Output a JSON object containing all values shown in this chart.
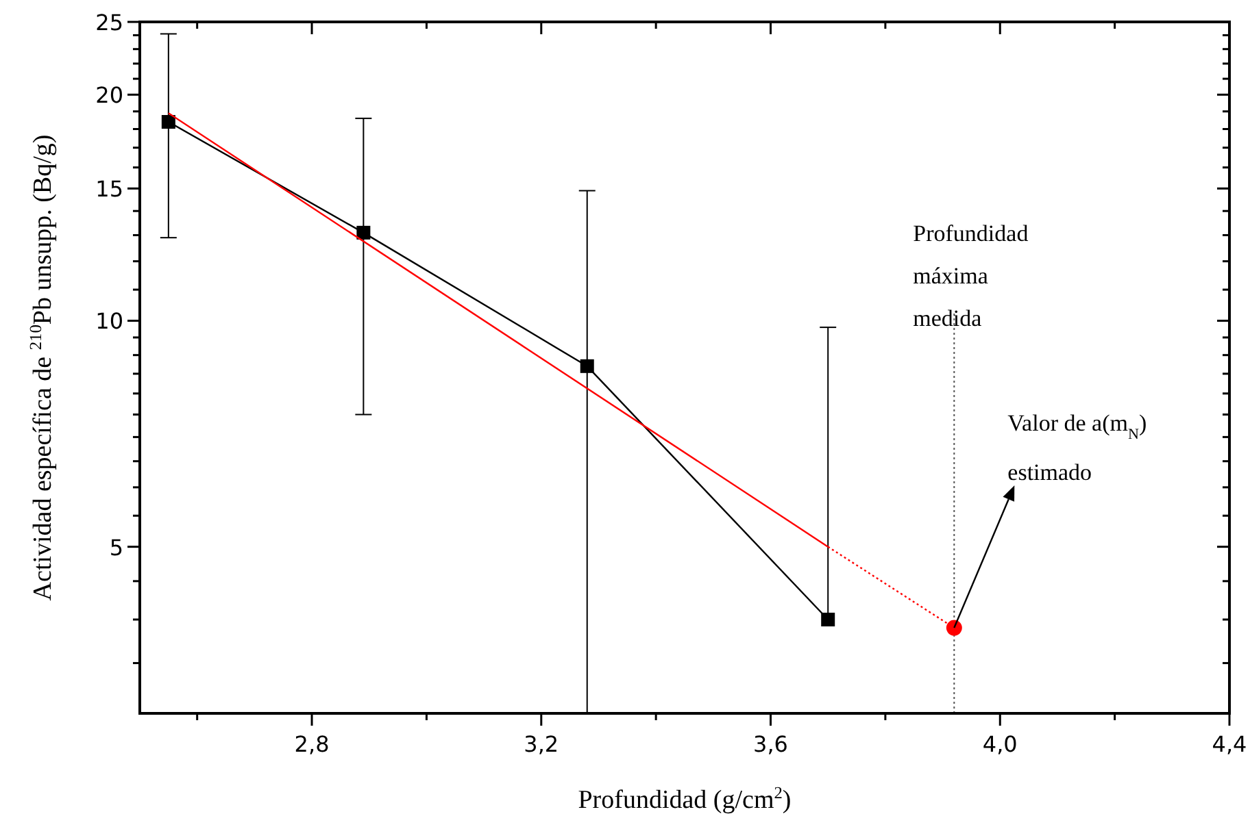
{
  "chart_data": {
    "type": "line",
    "xlabel": "Profundidad (g/cm$^{2}$)",
    "ylabel": "Actividad específica de $^{210}$Pb unsupp. (Bq/g)",
    "xlim": [
      2.5,
      4.4
    ],
    "xticks": [
      {
        "value": 2.6,
        "label": null
      },
      {
        "value": 2.8,
        "label": "2,8"
      },
      {
        "value": 3.0,
        "label": null
      },
      {
        "value": 3.2,
        "label": "3,2"
      },
      {
        "value": 3.4,
        "label": null
      },
      {
        "value": 3.6,
        "label": "3,6"
      },
      {
        "value": 3.8,
        "label": null
      },
      {
        "value": 4.0,
        "label": "4,0"
      },
      {
        "value": 4.2,
        "label": null
      },
      {
        "value": 4.4,
        "label": "4,4"
      }
    ],
    "ylim": [
      3,
      25
    ],
    "log": "y",
    "yticks": [
      {
        "value": 3.5,
        "label": null
      },
      {
        "value": 4,
        "label": null
      },
      {
        "value": 4.5,
        "label": null
      },
      5,
      {
        "value": 5.5,
        "label": null
      },
      {
        "value": 6,
        "label": null
      },
      {
        "value": 6.5,
        "label": null
      },
      {
        "value": 7,
        "label": null
      },
      {
        "value": 7.5,
        "label": null
      },
      {
        "value": 8,
        "label": null
      },
      {
        "value": 8.5,
        "label": null
      },
      {
        "value": 9,
        "label": null
      },
      {
        "value": 9.5,
        "label": null
      },
      10,
      {
        "value": 11,
        "label": null
      },
      {
        "value": 12,
        "label": null
      },
      {
        "value": 13,
        "label": null
      },
      {
        "value": 14,
        "label": null
      },
      15,
      {
        "value": 16,
        "label": null
      },
      {
        "value": 17,
        "label": null
      },
      {
        "value": 18,
        "label": null
      },
      {
        "value": 19,
        "label": null
      },
      20,
      {
        "value": 21,
        "label": null
      },
      {
        "value": 22,
        "label": null
      },
      {
        "value": 23,
        "label": null
      },
      {
        "value": 24,
        "label": null
      },
      25
    ],
    "grid": false,
    "series": [
      {
        "color": "#000000",
        "x": [
          2.55,
          2.89,
          3.28,
          3.7
        ],
        "values": [
          18.4,
          13.1,
          8.7,
          4.0
        ],
        "marker": "square",
        "line_style": "solid",
        "errors": [
          [
            12.9,
            24.1
          ],
          [
            7.5,
            18.6
          ],
          [
            3,
            14.9
          ],
          [
            4.0,
            9.8
          ]
        ]
      },
      {
        "color": "#ff0000",
        "x": [
          2.55,
          3.7
        ],
        "values": [
          18.9,
          5.0
        ],
        "marker": "none",
        "line_style": "solid"
      },
      {
        "color": "#ff0000",
        "x": [
          3.7,
          3.92
        ],
        "values": [
          5.0,
          3.9
        ],
        "marker": "none",
        "line_style": "dotted"
      },
      {
        "type": "scatter",
        "color": "#ff0000",
        "x": [
          3.92
        ],
        "values": [
          3.9
        ],
        "marker": "circle"
      }
    ],
    "ref_lines": [
      {
        "axis": "x",
        "value": 3.92,
        "label": "Profundidad máxima medida",
        "color": "#555555",
        "line_style": "dotted"
      }
    ],
    "annotations": [
      "Valor de a(m$_{N}$) estimado"
    ]
  }
}
